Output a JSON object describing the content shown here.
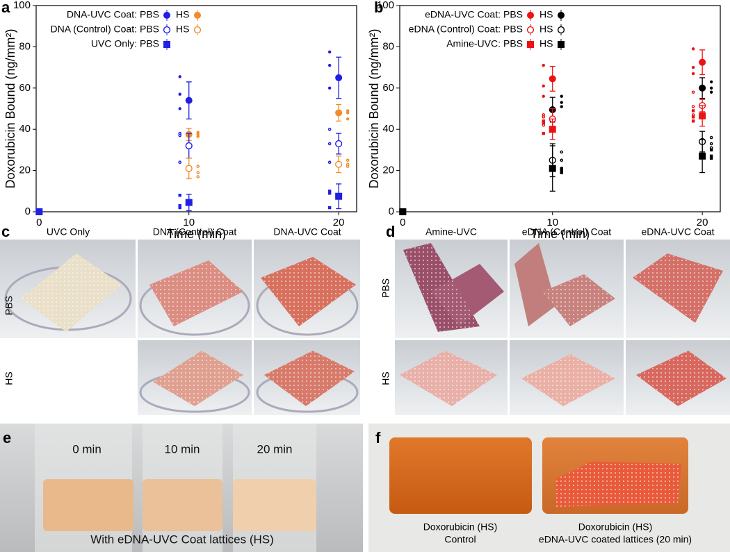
{
  "chart_data": [
    {
      "type": "scatter",
      "panel": "a",
      "ylabel": "Doxorubicin Bound (ng/mm²)",
      "xlabel": "Time (min)",
      "x": [
        0,
        10,
        20
      ],
      "xlim": [
        -0.2,
        21.2
      ],
      "xticks": [
        0,
        10,
        20
      ],
      "ylim": [
        0,
        100
      ],
      "yticks": [
        0,
        20,
        40,
        60,
        80,
        100
      ],
      "series": [
        {
          "group": "DNA-UVC Coat:",
          "name": "PBS",
          "color": "#1f1fe6",
          "marker": "circle",
          "values": [
            0,
            54,
            65
          ],
          "errors": [
            0,
            9,
            10
          ],
          "replicates": [
            [],
            [
              65.5,
              57,
              50
            ],
            [
              77.5,
              71,
              60
            ]
          ]
        },
        {
          "name": "HS",
          "color": "#f28c28",
          "marker": "circle",
          "values": [
            0,
            37.5,
            48
          ],
          "errors": [
            0,
            3,
            4
          ],
          "replicates": [
            [],
            [
              38.5,
              37.5,
              36.5
            ],
            [
              49,
              48,
              45
            ]
          ]
        },
        {
          "group": "DNA (Control) Coat:",
          "name": "PBS",
          "color": "#1f1fe6",
          "marker": "open-circle",
          "values": [
            0,
            32,
            33
          ],
          "errors": [
            0,
            6,
            5
          ],
          "replicates": [
            [],
            [
              38,
              37,
              24
            ],
            [
              40,
              33,
              24
            ]
          ]
        },
        {
          "name": "HS",
          "color": "#f28c28",
          "marker": "open-circle",
          "values": [
            0,
            21,
            23
          ],
          "errors": [
            0,
            5,
            4
          ],
          "replicates": [
            [],
            [
              22,
              19,
              17
            ],
            [
              25,
              23,
              22
            ]
          ]
        },
        {
          "group": "UVC Only:",
          "name": "PBS",
          "color": "#1f1fe6",
          "marker": "square",
          "values": [
            0,
            4.5,
            7.5
          ],
          "errors": [
            0,
            4,
            6
          ],
          "replicates": [
            [],
            [
              8,
              3,
              2
            ],
            [
              10,
              9,
              2
            ]
          ]
        }
      ]
    },
    {
      "type": "scatter",
      "panel": "b",
      "ylabel": "Doxorubicin Bound (ng/mm²)",
      "xlabel": "Time (min)",
      "x": [
        0,
        10,
        20
      ],
      "xlim": [
        -0.2,
        21.2
      ],
      "xticks": [
        0,
        10,
        20
      ],
      "ylim": [
        0,
        100
      ],
      "yticks": [
        0,
        20,
        40,
        60,
        80,
        100
      ],
      "series": [
        {
          "group": "eDNA-UVC Coat:",
          "name": "PBS",
          "color": "#ee1111",
          "marker": "circle",
          "values": [
            0,
            64.5,
            72.5
          ],
          "errors": [
            0,
            6,
            6
          ],
          "replicates": [
            [],
            [
              71,
              61,
              56
            ],
            [
              79,
              70,
              67
            ]
          ]
        },
        {
          "name": "HS",
          "color": "#000000",
          "marker": "circle",
          "values": [
            0,
            49.5,
            60
          ],
          "errors": [
            0,
            6,
            5
          ],
          "replicates": [
            [],
            [
              56,
              53,
              51
            ],
            [
              63,
              60,
              58
            ]
          ]
        },
        {
          "group": "eDNA (Control) Coat:",
          "name": "PBS",
          "color": "#ee1111",
          "marker": "open-circle",
          "values": [
            0,
            45,
            51.5
          ],
          "errors": [
            0,
            5,
            3
          ],
          "replicates": [
            [],
            [
              47,
              46,
              42
            ],
            [
              58,
              51,
              47
            ]
          ]
        },
        {
          "name": "HS",
          "color": "#000000",
          "marker": "open-circle",
          "values": [
            0,
            25,
            34
          ],
          "errors": [
            0,
            8,
            5
          ],
          "replicates": [
            [],
            [
              29,
              25,
              21
            ],
            [
              36,
              33,
              31
            ]
          ]
        },
        {
          "group": "Amine-UVC:",
          "name": "PBS",
          "color": "#ee1111",
          "marker": "square",
          "values": [
            0,
            40,
            46.5
          ],
          "errors": [
            0,
            5,
            5
          ],
          "replicates": [
            [],
            [
              44,
              43,
              38
            ],
            [
              49,
              46,
              44
            ]
          ]
        },
        {
          "name": "HS",
          "color": "#000000",
          "marker": "square",
          "values": [
            0,
            21,
            27
          ],
          "errors": [
            0,
            11,
            8
          ],
          "replicates": [
            [],
            [
              21,
              20,
              19
            ],
            [
              30,
              27,
              26
            ]
          ]
        }
      ]
    }
  ],
  "panels": {
    "c": {
      "label": "c",
      "columns": [
        "UVC Only",
        "DNA (Control) Coat",
        "DNA-UVC Coat"
      ],
      "rows": [
        "PBS",
        "HS"
      ]
    },
    "d": {
      "label": "d",
      "columns": [
        "Amine-UVC",
        "eDNA (Control) Coat",
        "eDNA-UVC Coat"
      ],
      "rows": [
        "PBS",
        "HS"
      ]
    },
    "e": {
      "label": "e",
      "vials": [
        "0 min",
        "10 min",
        "20 min"
      ],
      "caption": "With eDNA-UVC Coat lattices (HS)"
    },
    "f": {
      "label": "f",
      "left": [
        "Doxorubicin (HS)",
        "Control"
      ],
      "right": [
        "Doxorubicin (HS)",
        "eDNA-UVC coated lattices (20 min)"
      ]
    }
  }
}
